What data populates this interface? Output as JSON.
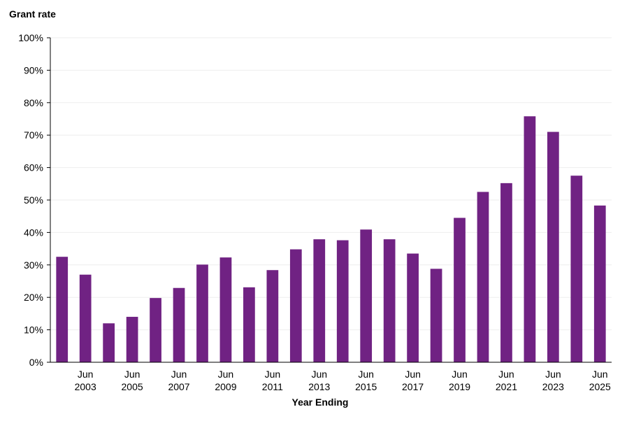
{
  "chart_data": {
    "type": "bar",
    "title": "",
    "ylabel": "Grant rate",
    "xlabel": "Year Ending",
    "ylim": [
      0,
      1
    ],
    "y_ticks": [
      "0%",
      "10%",
      "20%",
      "30%",
      "40%",
      "50%",
      "60%",
      "70%",
      "80%",
      "90%",
      "100%"
    ],
    "x_tick_labels": [
      {
        "category_index": 1,
        "line1": "Jun",
        "line2": "2003"
      },
      {
        "category_index": 3,
        "line1": "Jun",
        "line2": "2005"
      },
      {
        "category_index": 5,
        "line1": "Jun",
        "line2": "2007"
      },
      {
        "category_index": 7,
        "line1": "Jun",
        "line2": "2009"
      },
      {
        "category_index": 9,
        "line1": "Jun",
        "line2": "2011"
      },
      {
        "category_index": 11,
        "line1": "Jun",
        "line2": "2013"
      },
      {
        "category_index": 13,
        "line1": "Jun",
        "line2": "2015"
      },
      {
        "category_index": 15,
        "line1": "Jun",
        "line2": "2017"
      },
      {
        "category_index": 17,
        "line1": "Jun",
        "line2": "2019"
      },
      {
        "category_index": 19,
        "line1": "Jun",
        "line2": "2021"
      },
      {
        "category_index": 21,
        "line1": "Jun",
        "line2": "2023"
      },
      {
        "category_index": 23,
        "line1": "Jun",
        "line2": "2025"
      }
    ],
    "categories": [
      "Jun 2002",
      "Jun 2003",
      "Jun 2004",
      "Jun 2005",
      "Jun 2006",
      "Jun 2007",
      "Jun 2008",
      "Jun 2009",
      "Jun 2010",
      "Jun 2011",
      "Jun 2012",
      "Jun 2013",
      "Jun 2014",
      "Jun 2015",
      "Jun 2016",
      "Jun 2017",
      "Jun 2018",
      "Jun 2019",
      "Jun 2020",
      "Jun 2021",
      "Jun 2022",
      "Jun 2023",
      "Jun 2024",
      "Jun 2025"
    ],
    "values": [
      0.325,
      0.27,
      0.12,
      0.14,
      0.198,
      0.229,
      0.301,
      0.323,
      0.231,
      0.284,
      0.348,
      0.379,
      0.376,
      0.409,
      0.379,
      0.335,
      0.288,
      0.445,
      0.525,
      0.552,
      0.758,
      0.71,
      0.575,
      0.483
    ],
    "grid": true,
    "legend": "none",
    "bar_color": "#702283",
    "grid_color": "#eeeeee"
  }
}
